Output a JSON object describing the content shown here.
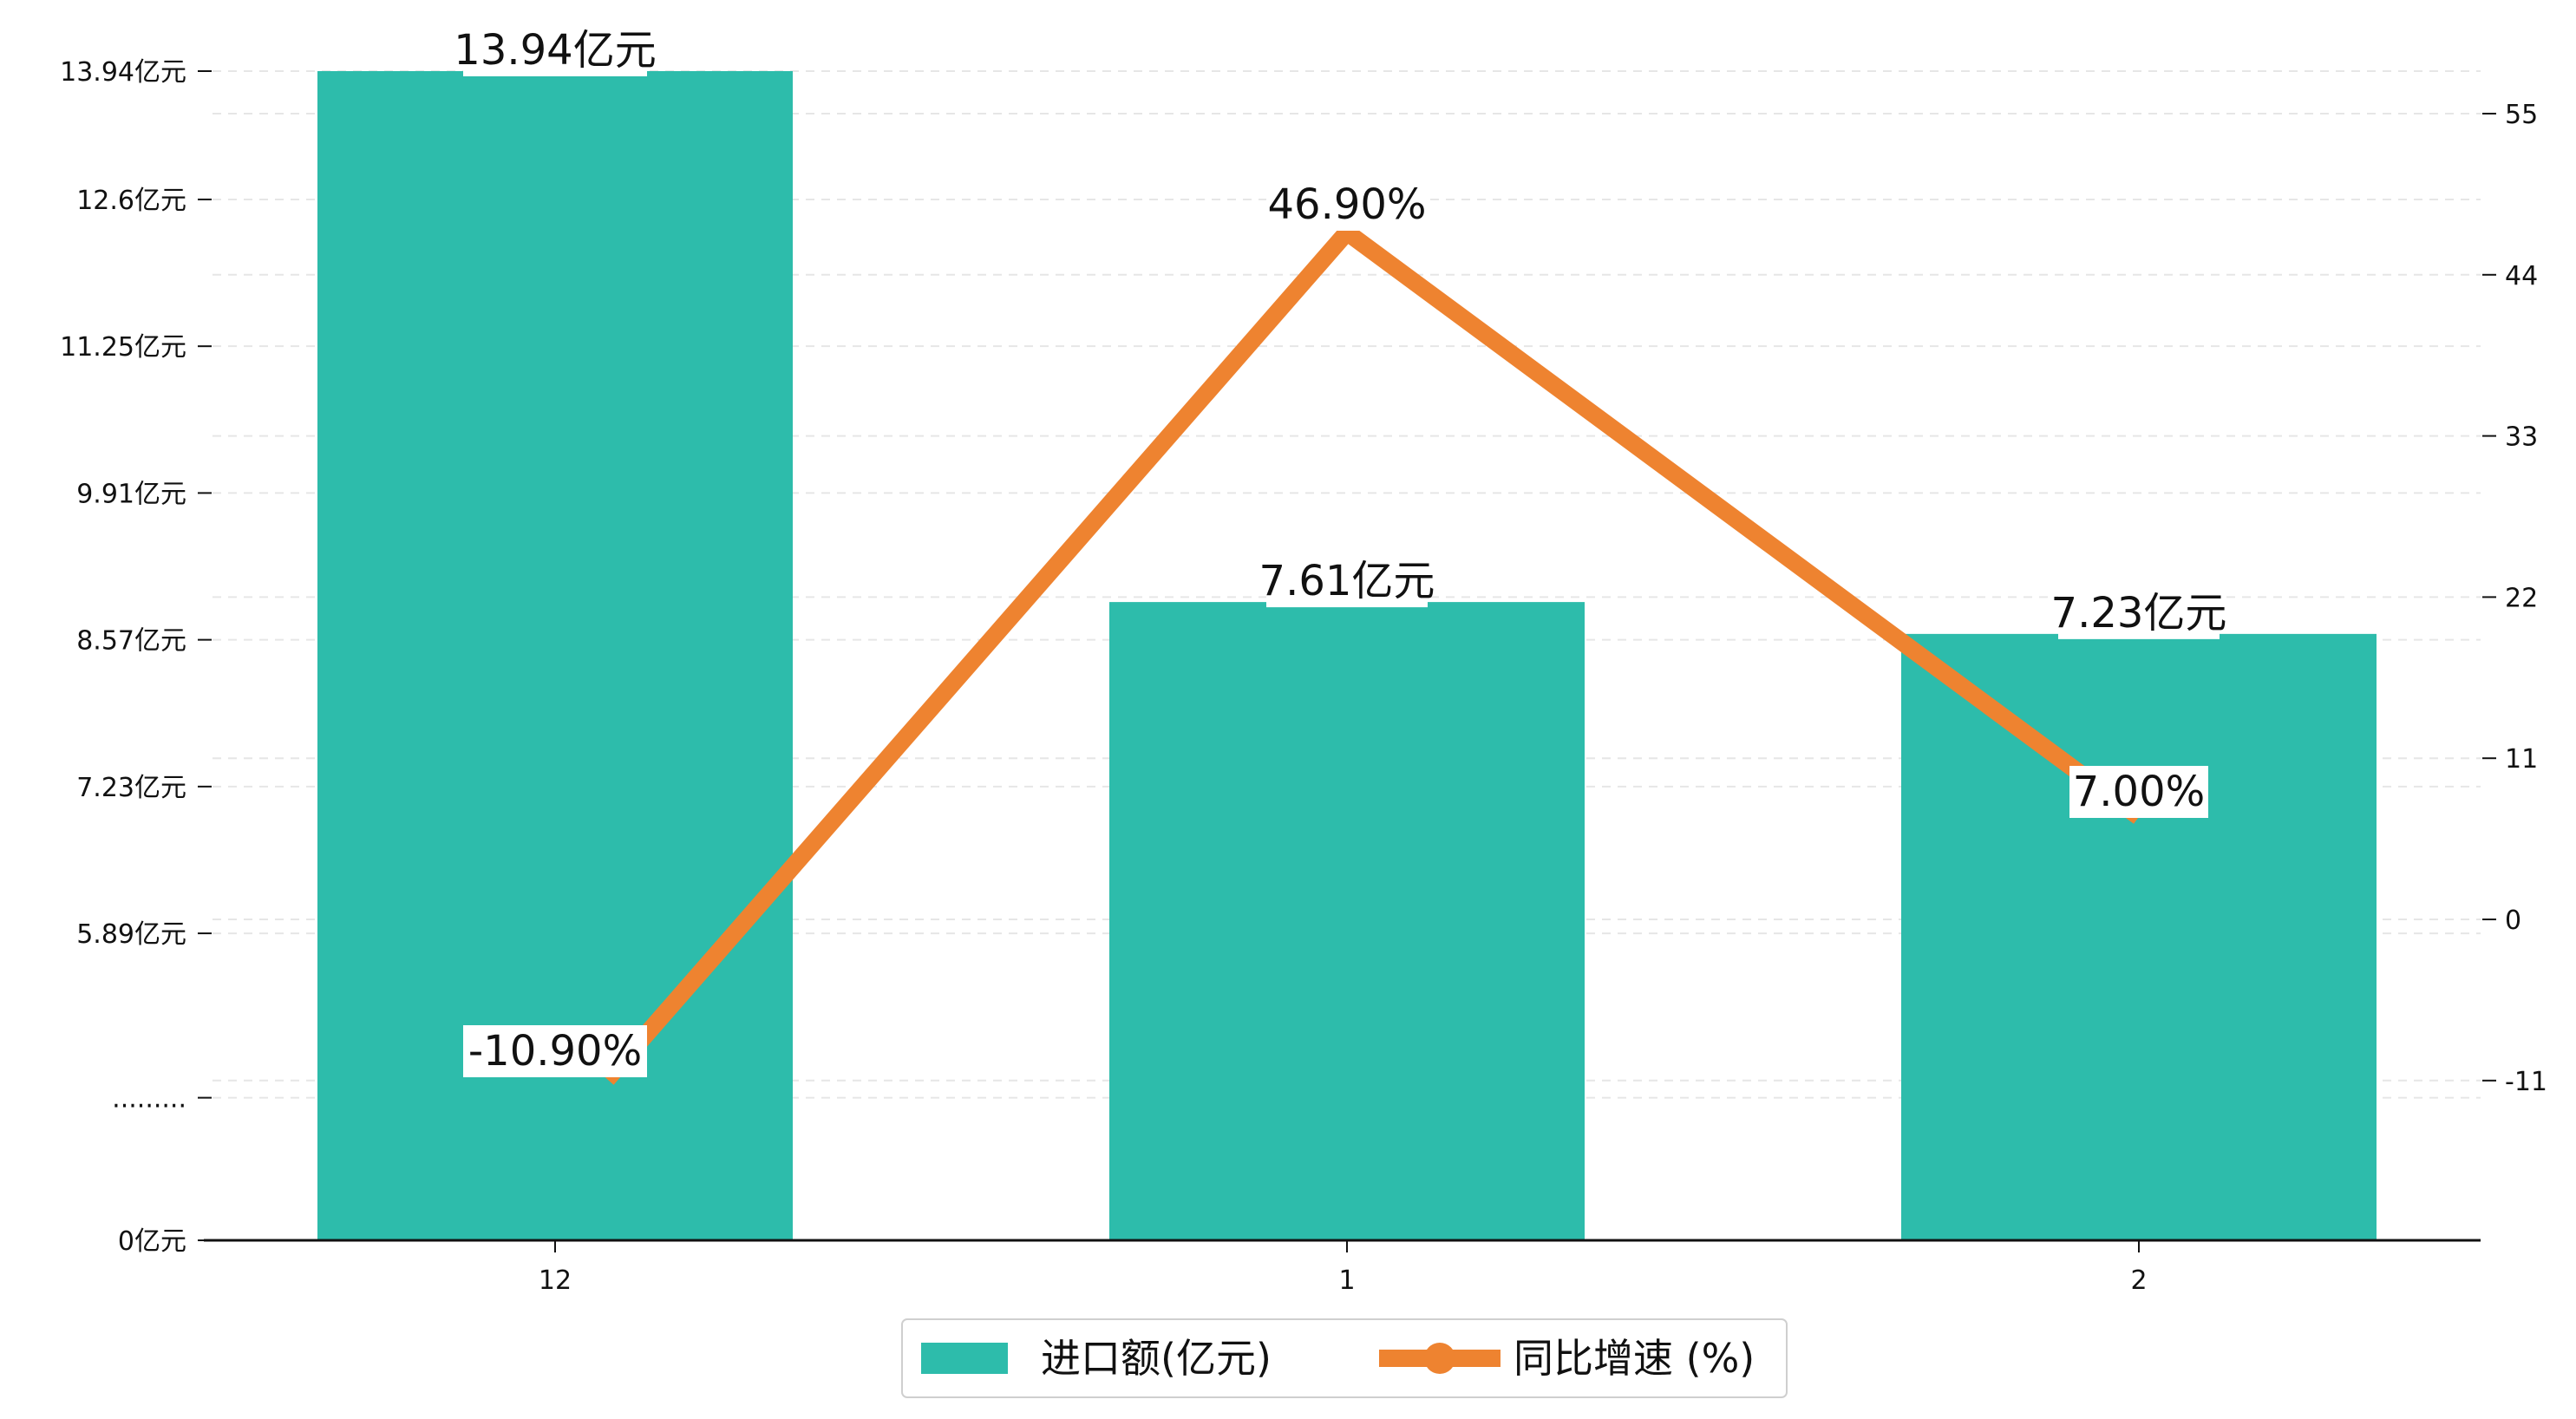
{
  "colors": {
    "bar": "#2dbcab",
    "line": "#ee8330",
    "axis": "#111111",
    "grid": "#e6e6e6",
    "label_bg": "#ffffff"
  },
  "legend": {
    "bar_label": "进口额(亿元)",
    "line_label": "同比增速 (%)"
  },
  "chart_data": {
    "type": "bar",
    "categories": [
      "12",
      "1",
      "2"
    ],
    "series": [
      {
        "name": "进口额(亿元)",
        "type": "bar",
        "axis": "left",
        "values": [
          13.94,
          7.61,
          7.23
        ],
        "labels": [
          "13.94亿元",
          "7.61亿元",
          "7.23亿元"
        ]
      },
      {
        "name": "同比增速 (%)",
        "type": "line",
        "axis": "right",
        "values": [
          -10.9,
          46.9,
          7.0
        ],
        "labels": [
          "-10.90%",
          "46.90%",
          "7.00%"
        ]
      }
    ],
    "y_left": {
      "ticks": [
        {
          "value": 0,
          "label": "0亿元"
        },
        {
          "value": 1.7,
          "label": "........."
        },
        {
          "value": 3.66,
          "label": "5.89亿元"
        },
        {
          "value": 5.41,
          "label": "7.23亿元"
        },
        {
          "value": 7.16,
          "label": "8.57亿元"
        },
        {
          "value": 8.91,
          "label": "9.91亿元"
        },
        {
          "value": 10.66,
          "label": "11.25亿元"
        },
        {
          "value": 12.41,
          "label": "12.6亿元"
        },
        {
          "value": 13.94,
          "label": "13.94亿元"
        }
      ],
      "range": [
        0,
        13.94
      ]
    },
    "y_right": {
      "ticks": [
        -11,
        0,
        11,
        22,
        33,
        44,
        55
      ],
      "range": [
        -21.9,
        57.4
      ]
    },
    "grid": "horizontal dashed",
    "legend_position": "bottom-center"
  }
}
